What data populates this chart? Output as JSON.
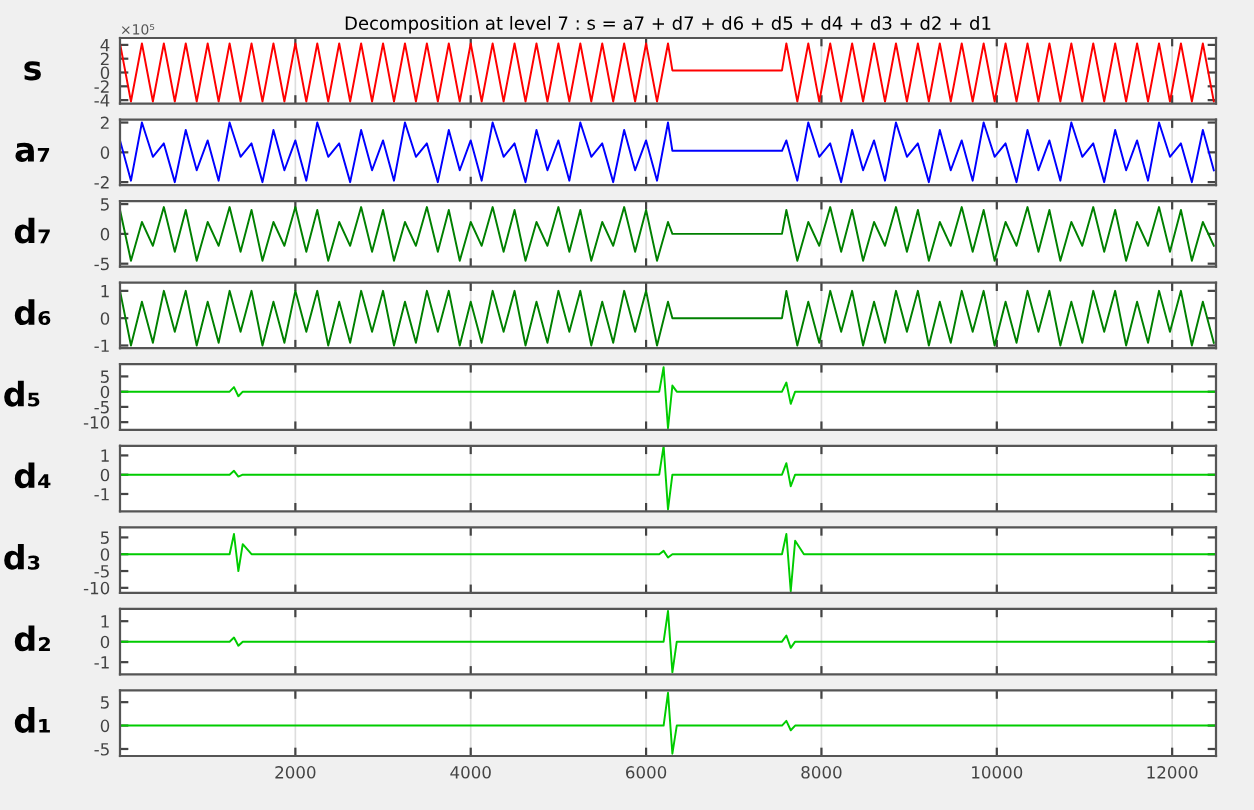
{
  "chart_data": [
    {
      "type": "line",
      "title": "Decomposition at level 7 : s = a7 + d7 + d6 + d5 + d4 + d3 + d2 + d1",
      "ylabel": "s",
      "annotations": [
        "×10⁵"
      ],
      "color": "#ff0000",
      "xlim": [
        0,
        12500
      ],
      "ylim": [
        -4.5,
        5
      ],
      "yticks": [
        -4,
        -2,
        0,
        2,
        4
      ],
      "grid": "x",
      "tick_labels": "y",
      "x": [
        0,
        125,
        250,
        375,
        500,
        625,
        750,
        875,
        1000,
        1125,
        1250,
        1375,
        1500,
        1625,
        1750,
        1875,
        2000,
        2125,
        2250,
        2375,
        2500,
        2625,
        2750,
        2875,
        3000,
        3125,
        3250,
        3375,
        3500,
        3625,
        3750,
        3875,
        4000,
        4125,
        4250,
        4375,
        4500,
        4625,
        4750,
        4875,
        5000,
        5125,
        5250,
        5375,
        5500,
        5625,
        5750,
        5875,
        6000,
        6125,
        6250,
        6300,
        7550,
        7600,
        7725,
        7850,
        7975,
        8100,
        8225,
        8350,
        8475,
        8600,
        8725,
        8850,
        8975,
        9100,
        9225,
        9350,
        9475,
        9600,
        9725,
        9850,
        9975,
        10100,
        10225,
        10350,
        10475,
        10600,
        10725,
        10850,
        10975,
        11100,
        11225,
        11350,
        11475,
        11600,
        11725,
        11850,
        11975,
        12100,
        12225,
        12350,
        12475
      ],
      "values": [
        4.2,
        -4.2,
        4.2,
        -4.2,
        4.2,
        -4.2,
        4.2,
        -4.2,
        4.2,
        -4.2,
        4.2,
        -4.2,
        4.2,
        -4.2,
        4.2,
        -4.2,
        4.2,
        -4.2,
        4.2,
        -4.2,
        4.2,
        -4.2,
        4.2,
        -4.2,
        4.2,
        -4.2,
        4.2,
        -4.2,
        4.2,
        -4.2,
        4.2,
        -4.2,
        4.2,
        -4.2,
        4.2,
        -4.2,
        4.2,
        -4.2,
        4.2,
        -4.2,
        4.2,
        -4.2,
        4.2,
        -4.2,
        4.2,
        -4.2,
        4.2,
        -4.2,
        4.2,
        -4.2,
        4.2,
        0.3,
        0.3,
        4.2,
        -4.2,
        4.2,
        -4.2,
        4.2,
        -4.2,
        4.2,
        -4.2,
        4.2,
        -4.2,
        4.2,
        -4.2,
        4.2,
        -4.2,
        4.2,
        -4.2,
        4.2,
        -4.2,
        4.2,
        -4.2,
        4.2,
        -4.2,
        4.2,
        -4.2,
        4.2,
        -4.2,
        4.2,
        -4.2,
        4.2,
        -4.2,
        4.2,
        -4.2,
        4.2,
        -4.2,
        4.2,
        -4.2,
        4.2,
        -4.2,
        4.2,
        -4.2
      ]
    },
    {
      "type": "line",
      "ylabel": "a₇",
      "color": "#0000ff",
      "xlim": [
        0,
        12500
      ],
      "ylim": [
        -2.2,
        2.2
      ],
      "yticks": [
        -2,
        0,
        2
      ],
      "grid": "x",
      "tick_labels": "y",
      "x": [
        0,
        125,
        250,
        375,
        500,
        625,
        750,
        875,
        1000,
        1125,
        1250,
        1375,
        1500,
        1625,
        1750,
        1875,
        2000,
        2125,
        2250,
        2375,
        2500,
        2625,
        2750,
        2875,
        3000,
        3125,
        3250,
        3375,
        3500,
        3625,
        3750,
        3875,
        4000,
        4125,
        4250,
        4375,
        4500,
        4625,
        4750,
        4875,
        5000,
        5125,
        5250,
        5375,
        5500,
        5625,
        5750,
        5875,
        6000,
        6125,
        6250,
        6300,
        7550,
        7600,
        7725,
        7850,
        7975,
        8100,
        8225,
        8350,
        8475,
        8600,
        8725,
        8850,
        8975,
        9100,
        9225,
        9350,
        9475,
        9600,
        9725,
        9850,
        9975,
        10100,
        10225,
        10350,
        10475,
        10600,
        10725,
        10850,
        10975,
        11100,
        11225,
        11350,
        11475,
        11600,
        11725,
        11850,
        11975,
        12100,
        12225,
        12350,
        12475
      ],
      "values": [
        0.8,
        -1.9,
        2,
        -0.3,
        0.6,
        -2,
        1.5,
        -1.2,
        0.8,
        -1.9,
        2,
        -0.3,
        0.6,
        -2,
        1.5,
        -1.2,
        0.8,
        -1.9,
        2,
        -0.3,
        0.6,
        -2,
        1.5,
        -1.2,
        0.8,
        -1.9,
        2,
        -0.3,
        0.6,
        -2,
        1.5,
        -1.2,
        0.8,
        -1.9,
        2,
        -0.3,
        0.6,
        -2,
        1.5,
        -1.2,
        0.8,
        -1.9,
        2,
        -0.3,
        0.6,
        -2,
        1.5,
        -1.2,
        0.8,
        -1.9,
        2,
        0.1,
        0.1,
        0.8,
        -1.9,
        2,
        -0.3,
        0.6,
        -2,
        1.5,
        -1.2,
        0.8,
        -1.9,
        2,
        -0.3,
        0.6,
        -2,
        1.5,
        -1.2,
        0.8,
        -1.9,
        2,
        -0.3,
        0.6,
        -2,
        1.5,
        -1.2,
        0.8,
        -1.9,
        2,
        -0.3,
        0.6,
        -2,
        1.5,
        -1.2,
        0.8,
        -1.9,
        2,
        -0.3,
        0.6,
        -2,
        1.5,
        -1.2
      ]
    },
    {
      "type": "line",
      "ylabel": "d₇",
      "color": "#008000",
      "xlim": [
        0,
        12500
      ],
      "ylim": [
        -5.5,
        5.5
      ],
      "yticks": [
        -5,
        0,
        5
      ],
      "grid": "x",
      "tick_labels": "y",
      "x": [
        0,
        125,
        250,
        375,
        500,
        625,
        750,
        875,
        1000,
        1125,
        1250,
        1375,
        1500,
        1625,
        1750,
        1875,
        2000,
        2125,
        2250,
        2375,
        2500,
        2625,
        2750,
        2875,
        3000,
        3125,
        3250,
        3375,
        3500,
        3625,
        3750,
        3875,
        4000,
        4125,
        4250,
        4375,
        4500,
        4625,
        4750,
        4875,
        5000,
        5125,
        5250,
        5375,
        5500,
        5625,
        5750,
        5875,
        6000,
        6125,
        6250,
        6300,
        7550,
        7600,
        7725,
        7850,
        7975,
        8100,
        8225,
        8350,
        8475,
        8600,
        8725,
        8850,
        8975,
        9100,
        9225,
        9350,
        9475,
        9600,
        9725,
        9850,
        9975,
        10100,
        10225,
        10350,
        10475,
        10600,
        10725,
        10850,
        10975,
        11100,
        11225,
        11350,
        11475,
        11600,
        11725,
        11850,
        11975,
        12100,
        12225,
        12350,
        12475
      ],
      "values": [
        4,
        -4.5,
        2,
        -2,
        4.5,
        -3,
        4,
        -4.5,
        2,
        -2,
        4.5,
        -3,
        4,
        -4.5,
        2,
        -2,
        4.5,
        -3,
        4,
        -4.5,
        2,
        -2,
        4.5,
        -3,
        4,
        -4.5,
        2,
        -2,
        4.5,
        -3,
        4,
        -4.5,
        2,
        -2,
        4.5,
        -3,
        4,
        -4.5,
        2,
        -2,
        4.5,
        -3,
        4,
        -4.5,
        2,
        -2,
        4.5,
        -3,
        4,
        -4.5,
        2,
        0,
        0,
        4,
        -4.5,
        2,
        -2,
        4.5,
        -3,
        4,
        -4.5,
        2,
        -2,
        4.5,
        -3,
        4,
        -4.5,
        2,
        -2,
        4.5,
        -3,
        4,
        -4.5,
        2,
        -2,
        4.5,
        -3,
        4,
        -4.5,
        2,
        -2,
        4.5,
        -3,
        4,
        -4.5,
        2,
        -2,
        4.5,
        -3,
        4,
        -4.5,
        2,
        -2
      ]
    },
    {
      "type": "line",
      "ylabel": "d₆",
      "color": "#008000",
      "xlim": [
        0,
        12500
      ],
      "ylim": [
        -1.1,
        1.3
      ],
      "yticks": [
        -1,
        0,
        1
      ],
      "grid": "x",
      "tick_labels": "y",
      "x": [
        0,
        125,
        250,
        375,
        500,
        625,
        750,
        875,
        1000,
        1125,
        1250,
        1375,
        1500,
        1625,
        1750,
        1875,
        2000,
        2125,
        2250,
        2375,
        2500,
        2625,
        2750,
        2875,
        3000,
        3125,
        3250,
        3375,
        3500,
        3625,
        3750,
        3875,
        4000,
        4125,
        4250,
        4375,
        4500,
        4625,
        4750,
        4875,
        5000,
        5125,
        5250,
        5375,
        5500,
        5625,
        5750,
        5875,
        6000,
        6125,
        6250,
        6300,
        7550,
        7600,
        7725,
        7850,
        7975,
        8100,
        8225,
        8350,
        8475,
        8600,
        8725,
        8850,
        8975,
        9100,
        9225,
        9350,
        9475,
        9600,
        9725,
        9850,
        9975,
        10100,
        10225,
        10350,
        10475,
        10600,
        10725,
        10850,
        10975,
        11100,
        11225,
        11350,
        11475,
        11600,
        11725,
        11850,
        11975,
        12100,
        12225,
        12350,
        12475
      ],
      "values": [
        1,
        -1,
        0.6,
        -0.9,
        1,
        -0.5,
        1,
        -1,
        0.6,
        -0.9,
        1,
        -0.5,
        1,
        -1,
        0.6,
        -0.9,
        1,
        -0.5,
        1,
        -1,
        0.6,
        -0.9,
        1,
        -0.5,
        1,
        -1,
        0.6,
        -0.9,
        1,
        -0.5,
        1,
        -1,
        0.6,
        -0.9,
        1,
        -0.5,
        1,
        -1,
        0.6,
        -0.9,
        1,
        -0.5,
        1,
        -1,
        0.6,
        -0.9,
        1,
        -0.5,
        1,
        -1,
        0.6,
        0,
        0,
        1,
        -1,
        0.6,
        -0.9,
        1,
        -0.5,
        1,
        -1,
        0.6,
        -0.9,
        1,
        -0.5,
        1,
        -1,
        0.6,
        -0.9,
        1,
        -0.5,
        1,
        -1,
        0.6,
        -0.9,
        1,
        -0.5,
        1,
        -1,
        0.6,
        -0.9,
        1,
        -0.5,
        1,
        -1,
        0.6,
        -0.9,
        1,
        -0.5,
        1,
        -1,
        0.6,
        -0.9
      ]
    },
    {
      "type": "line",
      "ylabel": "d₅",
      "color": "#00cc00",
      "xlim": [
        0,
        12500
      ],
      "ylim": [
        -12.5,
        9
      ],
      "yticks": [
        -10,
        -5,
        0,
        5
      ],
      "grid": "x",
      "tick_labels": "y",
      "x": [
        0,
        1250,
        1300,
        1350,
        1400,
        6150,
        6200,
        6250,
        6300,
        6350,
        7550,
        7600,
        7650,
        7700,
        12500
      ],
      "values": [
        0,
        0,
        1.5,
        -1.5,
        0,
        0,
        8,
        -12,
        2,
        0,
        0,
        3,
        -4,
        0,
        0
      ]
    },
    {
      "type": "line",
      "ylabel": "d₄",
      "color": "#00cc00",
      "xlim": [
        0,
        12500
      ],
      "ylim": [
        -1.9,
        1.5
      ],
      "yticks": [
        -1,
        0,
        1
      ],
      "grid": "x",
      "tick_labels": "y",
      "x": [
        0,
        1250,
        1300,
        1350,
        1400,
        6150,
        6200,
        6250,
        6300,
        7550,
        7600,
        7650,
        7700,
        12500
      ],
      "values": [
        0,
        0,
        0.2,
        -0.1,
        0,
        0,
        1.5,
        -1.8,
        0,
        0,
        0.6,
        -0.6,
        0,
        0
      ]
    },
    {
      "type": "line",
      "ylabel": "d₃",
      "color": "#00cc00",
      "xlim": [
        0,
        12500
      ],
      "ylim": [
        -11.5,
        8
      ],
      "yticks": [
        -10,
        -5,
        0,
        5
      ],
      "grid": "x",
      "tick_labels": "y",
      "x": [
        0,
        1250,
        1300,
        1350,
        1400,
        1500,
        6150,
        6200,
        6250,
        6300,
        7550,
        7600,
        7650,
        7700,
        7800,
        12500
      ],
      "values": [
        0,
        0,
        6,
        -5,
        3,
        0,
        0,
        1,
        -1,
        0,
        0,
        6,
        -11,
        4,
        0,
        0
      ]
    },
    {
      "type": "line",
      "ylabel": "d₂",
      "color": "#00cc00",
      "xlim": [
        0,
        12500
      ],
      "ylim": [
        -1.6,
        1.6
      ],
      "yticks": [
        -1,
        0,
        1
      ],
      "grid": "x",
      "tick_labels": "y",
      "x": [
        0,
        1250,
        1300,
        1350,
        1400,
        6200,
        6250,
        6300,
        6350,
        7550,
        7600,
        7650,
        7700,
        12500
      ],
      "values": [
        0,
        0,
        0.2,
        -0.2,
        0,
        0,
        1.5,
        -1.5,
        0,
        0,
        0.3,
        -0.3,
        0,
        0
      ]
    },
    {
      "type": "line",
      "ylabel": "d₁",
      "color": "#00cc00",
      "xlim": [
        0,
        12500
      ],
      "ylim": [
        -6.5,
        7.5
      ],
      "yticks": [
        -5,
        0,
        5
      ],
      "xticks": [
        2000,
        4000,
        6000,
        8000,
        10000,
        12000
      ],
      "grid": "x",
      "x": [
        0,
        6200,
        6250,
        6300,
        6350,
        7550,
        7600,
        7650,
        7700,
        12500
      ],
      "values": [
        0,
        0,
        7,
        -6,
        0,
        0,
        1,
        -1,
        0,
        0
      ]
    }
  ]
}
